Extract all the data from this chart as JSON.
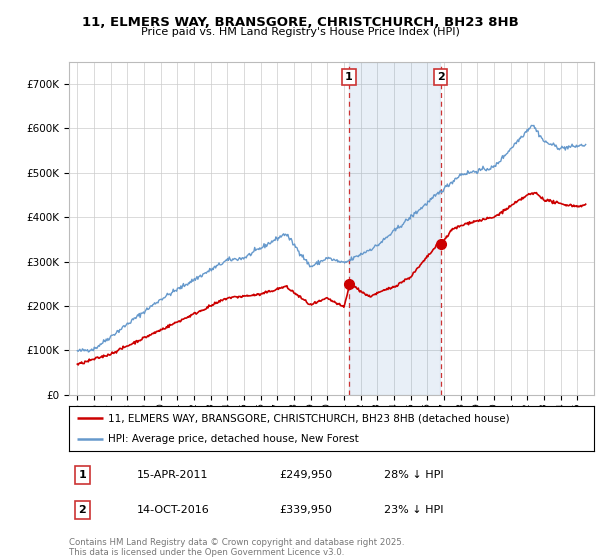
{
  "title_line1": "11, ELMERS WAY, BRANSGORE, CHRISTCHURCH, BH23 8HB",
  "title_line2": "Price paid vs. HM Land Registry's House Price Index (HPI)",
  "ylim": [
    0,
    750000
  ],
  "yticks": [
    0,
    100000,
    200000,
    300000,
    400000,
    500000,
    600000,
    700000
  ],
  "ytick_labels": [
    "£0",
    "£100K",
    "£200K",
    "£300K",
    "£400K",
    "£500K",
    "£600K",
    "£700K"
  ],
  "red_color": "#cc0000",
  "blue_color": "#6699cc",
  "shade_color": "#ddeeff",
  "sale1_x": 2011.29,
  "sale1_y": 249950,
  "sale2_x": 2016.79,
  "sale2_y": 339950,
  "vline1_x": 2011.29,
  "vline2_x": 2016.79,
  "legend_line1": "11, ELMERS WAY, BRANSGORE, CHRISTCHURCH, BH23 8HB (detached house)",
  "legend_line2": "HPI: Average price, detached house, New Forest",
  "table_row1": [
    "1",
    "15-APR-2011",
    "£249,950",
    "28% ↓ HPI"
  ],
  "table_row2": [
    "2",
    "14-OCT-2016",
    "£339,950",
    "23% ↓ HPI"
  ],
  "footnote": "Contains HM Land Registry data © Crown copyright and database right 2025.\nThis data is licensed under the Open Government Licence v3.0.",
  "background_color": "#ffffff",
  "grid_color": "#cccccc",
  "vline_color": "#cc3333",
  "xmin": 1994.5,
  "xmax": 2026.0
}
